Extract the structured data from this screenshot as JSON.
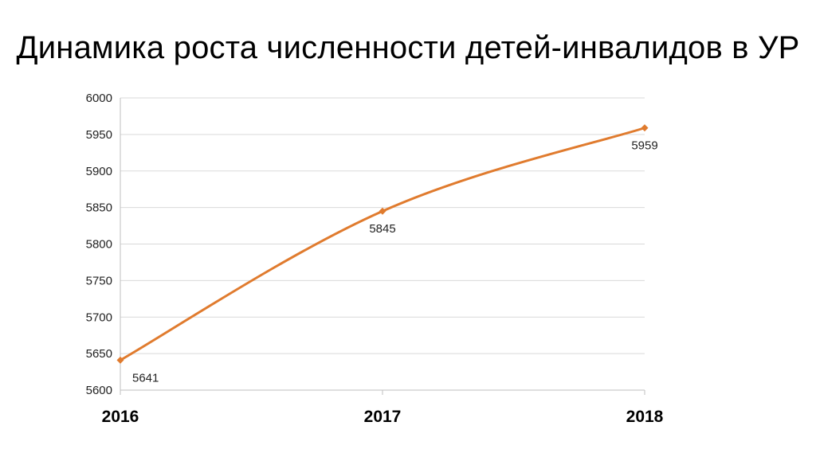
{
  "title": "Динамика роста численности детей-инвалидов в УР",
  "chart_data": {
    "type": "line",
    "title": "Динамика роста численности детей-инвалидов в УР",
    "categories": [
      "2016",
      "2017",
      "2018"
    ],
    "series": [
      {
        "values": [
          5641,
          5845,
          5959
        ],
        "color": "#e07b2e"
      }
    ],
    "data_labels": [
      "5641",
      "5845",
      "5959"
    ],
    "ylim": [
      5600,
      6000
    ],
    "yticks": [
      5600,
      5650,
      5700,
      5750,
      5800,
      5850,
      5900,
      5950,
      6000
    ],
    "xlabel": "",
    "ylabel": "",
    "grid": true,
    "smooth": true,
    "marker": "diamond"
  }
}
